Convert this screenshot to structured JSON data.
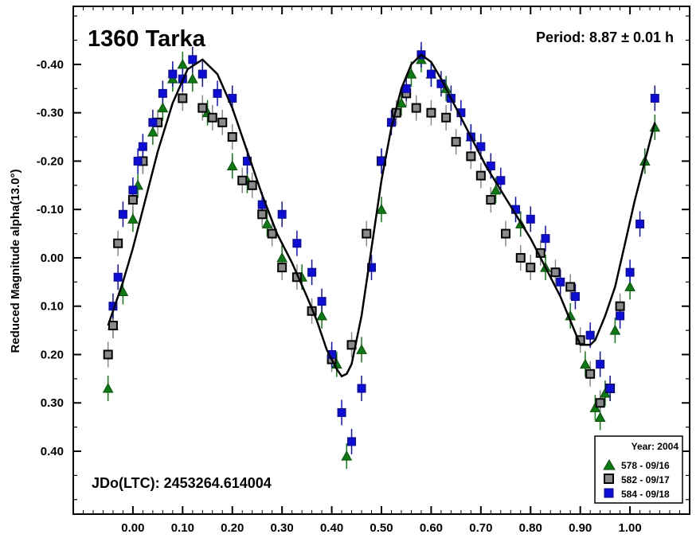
{
  "chart_data": {
    "type": "scatter",
    "title": "1360 Tarka",
    "period": "Period: 8.87 ± 0.01 h",
    "jdo": "JDo(LTC): 2453264.614004",
    "xlabel": "",
    "ylabel": "Reduced Magnitude alpha(13.0°)",
    "xlim": [
      -0.12,
      1.12
    ],
    "ylim": [
      -0.52,
      0.53
    ],
    "y_inverted": true,
    "x_ticks": [
      "0.00",
      "0.10",
      "0.20",
      "0.30",
      "0.40",
      "0.50",
      "0.60",
      "0.70",
      "0.80",
      "0.90",
      "1.00"
    ],
    "x_tick_values": [
      0.0,
      0.1,
      0.2,
      0.3,
      0.4,
      0.5,
      0.6,
      0.7,
      0.8,
      0.9,
      1.0
    ],
    "y_ticks": [
      "-0.40",
      "-0.30",
      "-0.20",
      "-0.10",
      "0.00",
      "0.10",
      "0.20",
      "0.30",
      "0.40"
    ],
    "y_tick_values": [
      -0.4,
      -0.3,
      -0.2,
      -0.1,
      0.0,
      0.1,
      0.2,
      0.3,
      0.4
    ],
    "grid": false,
    "legend_placement": "bottom-right",
    "legend_title": "Year: 2004",
    "series": [
      {
        "name": "578 - 09/16",
        "marker": "triangle",
        "color": "#0c7a12",
        "x": [
          -0.05,
          -0.04,
          -0.02,
          0.0,
          0.01,
          0.02,
          0.04,
          0.06,
          0.08,
          0.1,
          0.12,
          0.15,
          0.2,
          0.23,
          0.27,
          0.3,
          0.34,
          0.38,
          0.41,
          0.43,
          0.46,
          0.5,
          0.54,
          0.56,
          0.58,
          0.6,
          0.63,
          0.68,
          0.73,
          0.78,
          0.83,
          0.88,
          0.91,
          0.93,
          0.94,
          0.95,
          0.97,
          1.0,
          1.03,
          1.05
        ],
        "y": [
          0.27,
          0.14,
          0.07,
          -0.08,
          -0.15,
          -0.2,
          -0.26,
          -0.31,
          -0.37,
          -0.4,
          -0.37,
          -0.3,
          -0.19,
          -0.16,
          -0.07,
          0.0,
          0.04,
          0.12,
          0.22,
          0.41,
          0.19,
          -0.1,
          -0.32,
          -0.38,
          -0.41,
          -0.38,
          -0.35,
          -0.25,
          -0.14,
          -0.07,
          0.02,
          0.12,
          0.22,
          0.31,
          0.33,
          0.28,
          0.15,
          0.06,
          -0.2,
          -0.27
        ]
      },
      {
        "name": "582 - 09/17",
        "marker": "square",
        "color": "#8a8a8a",
        "x": [
          -0.05,
          -0.04,
          -0.03,
          0.0,
          0.02,
          0.05,
          0.1,
          0.14,
          0.16,
          0.18,
          0.2,
          0.22,
          0.24,
          0.26,
          0.28,
          0.3,
          0.33,
          0.36,
          0.4,
          0.44,
          0.47,
          0.5,
          0.53,
          0.55,
          0.57,
          0.6,
          0.63,
          0.65,
          0.68,
          0.7,
          0.72,
          0.75,
          0.78,
          0.8,
          0.82,
          0.85,
          0.88,
          0.9,
          0.92,
          0.94,
          0.96,
          0.98
        ],
        "y": [
          0.2,
          0.14,
          -0.03,
          -0.12,
          -0.2,
          -0.28,
          -0.33,
          -0.31,
          -0.29,
          -0.28,
          -0.25,
          -0.16,
          -0.15,
          -0.09,
          -0.05,
          0.02,
          0.04,
          0.11,
          0.21,
          0.18,
          -0.05,
          -0.2,
          -0.3,
          -0.34,
          -0.31,
          -0.3,
          -0.29,
          -0.24,
          -0.21,
          -0.17,
          -0.12,
          -0.05,
          0.0,
          0.02,
          -0.01,
          0.03,
          0.06,
          0.17,
          0.24,
          0.3,
          0.27,
          0.1
        ]
      },
      {
        "name": "584 - 09/18",
        "marker": "square",
        "color": "#0d0dd6",
        "x": [
          -0.04,
          -0.03,
          -0.02,
          0.0,
          0.01,
          0.02,
          0.04,
          0.06,
          0.08,
          0.1,
          0.12,
          0.14,
          0.17,
          0.2,
          0.23,
          0.26,
          0.3,
          0.33,
          0.36,
          0.38,
          0.4,
          0.42,
          0.44,
          0.46,
          0.48,
          0.5,
          0.52,
          0.55,
          0.58,
          0.6,
          0.62,
          0.64,
          0.66,
          0.68,
          0.7,
          0.72,
          0.74,
          0.77,
          0.8,
          0.83,
          0.86,
          0.89,
          0.92,
          0.94,
          0.96,
          0.98,
          1.0,
          1.02,
          1.05
        ],
        "y": [
          0.1,
          0.04,
          -0.09,
          -0.14,
          -0.2,
          -0.23,
          -0.28,
          -0.34,
          -0.38,
          -0.37,
          -0.41,
          -0.38,
          -0.34,
          -0.33,
          -0.2,
          -0.11,
          -0.09,
          -0.03,
          0.03,
          0.09,
          0.2,
          0.32,
          0.38,
          0.27,
          0.02,
          -0.2,
          -0.28,
          -0.35,
          -0.42,
          -0.38,
          -0.36,
          -0.33,
          -0.3,
          -0.25,
          -0.23,
          -0.19,
          -0.16,
          -0.1,
          -0.08,
          -0.04,
          0.05,
          0.08,
          0.16,
          0.22,
          0.27,
          0.12,
          0.03,
          -0.07,
          -0.33
        ]
      }
    ],
    "fit_curve": {
      "color": "#000000",
      "x": [
        -0.05,
        -0.02,
        0.0,
        0.02,
        0.05,
        0.08,
        0.11,
        0.14,
        0.17,
        0.2,
        0.23,
        0.26,
        0.29,
        0.32,
        0.35,
        0.37,
        0.39,
        0.41,
        0.42,
        0.43,
        0.44,
        0.46,
        0.48,
        0.5,
        0.52,
        0.54,
        0.56,
        0.58,
        0.6,
        0.62,
        0.65,
        0.68,
        0.71,
        0.74,
        0.77,
        0.8,
        0.83,
        0.86,
        0.88,
        0.9,
        0.92,
        0.93,
        0.95,
        0.97,
        0.99,
        1.01,
        1.03,
        1.05
      ],
      "y": [
        0.14,
        0.05,
        -0.02,
        -0.1,
        -0.22,
        -0.32,
        -0.39,
        -0.41,
        -0.38,
        -0.31,
        -0.22,
        -0.13,
        -0.05,
        0.01,
        0.08,
        0.13,
        0.19,
        0.23,
        0.245,
        0.24,
        0.22,
        0.12,
        -0.02,
        -0.16,
        -0.27,
        -0.35,
        -0.4,
        -0.42,
        -0.405,
        -0.37,
        -0.31,
        -0.25,
        -0.19,
        -0.14,
        -0.09,
        -0.04,
        0.02,
        0.08,
        0.13,
        0.18,
        0.18,
        0.17,
        0.12,
        0.06,
        -0.03,
        -0.12,
        -0.2,
        -0.28
      ]
    }
  }
}
